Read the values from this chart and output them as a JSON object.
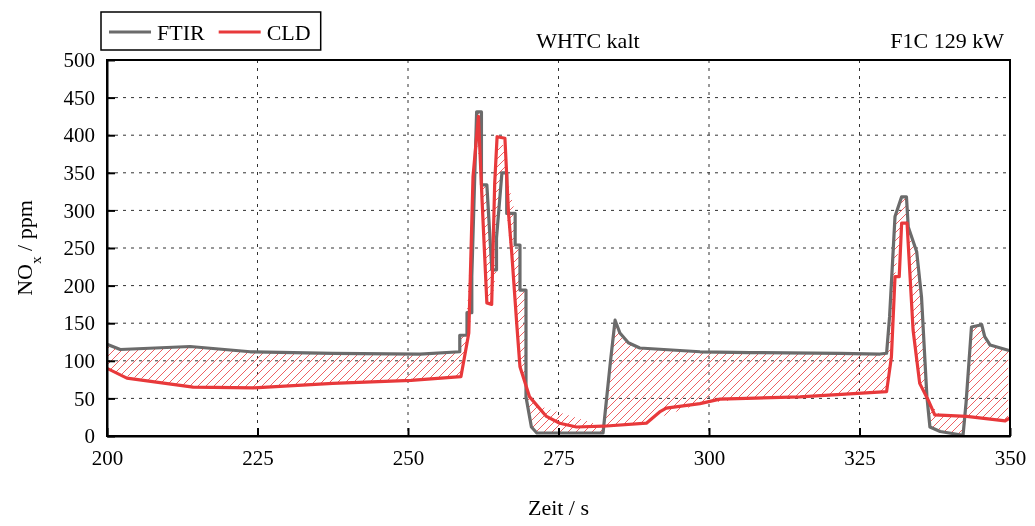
{
  "chart_data": {
    "type": "line",
    "title": "WHTC kalt",
    "xlabel": "Zeit / s",
    "ylabel": "NO$_{x}$ / ppm",
    "annotations": [
      "F1C 129 kW"
    ],
    "xlim": [
      200,
      350
    ],
    "xticks": [
      200,
      225,
      250,
      275,
      300,
      325,
      350
    ],
    "ylim": [
      0,
      500
    ],
    "yticks": [
      0,
      50,
      100,
      150,
      200,
      250,
      300,
      350,
      400,
      450,
      500
    ],
    "grid": true,
    "legend": "top left",
    "line_style": "solid",
    "marker": "none",
    "series": [
      {
        "name": "FTIR",
        "color": "#6b6b6b",
        "x": [
          200,
          202.2,
          213.8,
          223.8,
          237.5,
          252,
          258.6,
          258.6,
          259.8,
          259.8,
          260.6,
          260.6,
          261.4,
          262.2,
          262.2,
          263.1,
          263.9,
          263.9,
          264.7,
          264.7,
          265.6,
          266.4,
          266.4,
          267.8,
          267.8,
          268.6,
          268.6,
          269.6,
          269.6,
          270.5,
          271.4,
          282.4,
          283.6,
          284.4,
          285.2,
          286.6,
          288.5,
          298.5,
          306.8,
          321.8,
          328.4,
          329.5,
          330,
          330.9,
          332,
          332.8,
          333.1,
          334.5,
          335.3,
          336.2,
          336.7,
          338.4,
          342.2,
          342.7,
          343.6,
          345.3,
          345.8,
          346.7,
          349.7
        ],
        "values": [
          122,
          115,
          119,
          112,
          110,
          109,
          112,
          134,
          134,
          164,
          164,
          212,
          431,
          431,
          334,
          334,
          225,
          221,
          221,
          263,
          350,
          350,
          296,
          296,
          254,
          254,
          194,
          194,
          52,
          12,
          4,
          4,
          97,
          154,
          137,
          124,
          117,
          112,
          111,
          110,
          109,
          110,
          159,
          292,
          318,
          318,
          278,
          245,
          185,
          52,
          12,
          6,
          1,
          44,
          145,
          148,
          132,
          121,
          114
        ],
        "lower": [
          90,
          81,
          65,
          64,
          70,
          74,
          79,
          79,
          123,
          123,
          164,
          212,
          398,
          333,
          333,
          177,
          175,
          175,
          221,
          263,
          350,
          346,
          296,
          179,
          179,
          92,
          92,
          67,
          52,
          12,
          4,
          4,
          14,
          14,
          14,
          15,
          16,
          43,
          50,
          55,
          58,
          59,
          88,
          212,
          283,
          283,
          255,
          102,
          65,
          51,
          12,
          6,
          1,
          26,
          25,
          24,
          24,
          23,
          22
        ],
        "upper": [
          122,
          115,
          119,
          112,
          110,
          109,
          112,
          134,
          134,
          164,
          286,
          286,
          431,
          431,
          334,
          334,
          225,
          221,
          382,
          382,
          397,
          350,
          346,
          296,
          254,
          254,
          194,
          194,
          67,
          49,
          41,
          13,
          97,
          154,
          137,
          124,
          117,
          112,
          111,
          110,
          109,
          110,
          159,
          292,
          318,
          318,
          278,
          245,
          185,
          52,
          43,
          28,
          26,
          44,
          145,
          148,
          132,
          121,
          114
        ]
      },
      {
        "name": "CLD",
        "color": "#e8393b",
        "x": [
          200,
          203.3,
          214.3,
          224.3,
          237.5,
          250.5,
          258.8,
          260.1,
          260.8,
          261.7,
          262.3,
          263.1,
          263.9,
          264.4,
          264.8,
          266.1,
          266.7,
          267.2,
          268.1,
          268.6,
          270.2,
          273,
          275.2,
          278,
          282.4,
          289.6,
          291.8,
          292.9,
          298.5,
          301.8,
          315.1,
          329.5,
          330.3,
          330.9,
          331.6,
          332,
          332.9,
          333.9,
          335,
          336.4,
          337.5,
          342.8,
          349.2,
          350
        ],
        "values": [
          90,
          77,
          65,
          64,
          70,
          74,
          79,
          137,
          345,
          425,
          314,
          177,
          175,
          336,
          398,
          396,
          296,
          247,
          145,
          92,
          52,
          26,
          17,
          12,
          13,
          17,
          32,
          37,
          43,
          49,
          52,
          59,
          105,
          212,
          212,
          283,
          283,
          141,
          70,
          48,
          28,
          26,
          20,
          24
        ]
      }
    ]
  }
}
